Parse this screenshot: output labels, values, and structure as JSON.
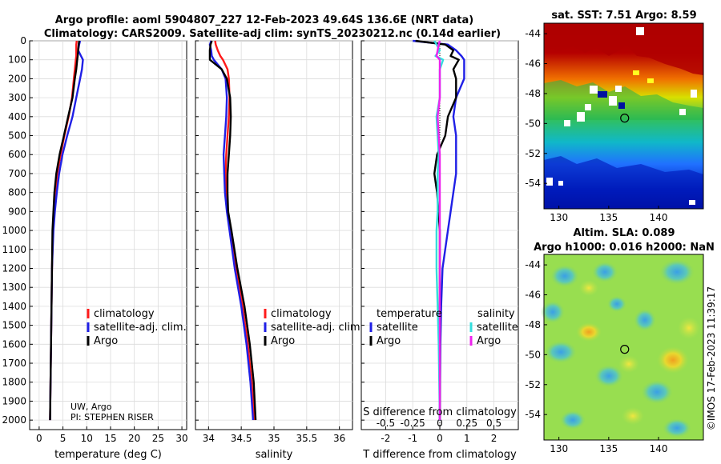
{
  "header": {
    "title_line1": "Argo profile: aoml 5904807_227 12-Feb-2023 49.64S 136.6E (NRT data)",
    "title_line2": "Climatology: CARS2009. Satellite-adj clim: synTS_20230212.nc (0.14d earlier)"
  },
  "pressure_ticks": [
    "0",
    "100",
    "200",
    "300",
    "400",
    "500",
    "600",
    "700",
    "800",
    "900",
    "1000",
    "1100",
    "1200",
    "1300",
    "1400",
    "1500",
    "1600",
    "1700",
    "1800",
    "1900",
    "2000"
  ],
  "legend": {
    "climatology": "climatology",
    "satellite": "satellite-adj. clim.",
    "argo": "Argo"
  },
  "diff_legend": {
    "temperature": "temperature",
    "salinity": "salinity",
    "satellite": "satellite",
    "argo": "Argo"
  },
  "credit": {
    "line1": "UW, Argo",
    "line2": "PI: STEPHEN RISER"
  },
  "colors": {
    "climatology": "#ff1a1a",
    "satellite": "#1f1fe6",
    "argo": "#000000",
    "t_sat": "#1f1fe6",
    "t_argo": "#000000",
    "s_sat": "#33dddd",
    "s_argo": "#ee22ee"
  },
  "chart_data": [
    {
      "type": "line",
      "title": "",
      "xlabel": "temperature (deg C)",
      "ylabel": "",
      "xlim": [
        -2,
        31
      ],
      "ylim": [
        2050,
        0
      ],
      "xticks": [
        0,
        5,
        10,
        15,
        20,
        25,
        30
      ],
      "xtick_labels": [
        "0",
        "5",
        "10",
        "15",
        "20",
        "25",
        "30"
      ],
      "y": [
        0,
        20,
        50,
        80,
        100,
        150,
        200,
        300,
        400,
        500,
        600,
        700,
        800,
        900,
        1000,
        1200,
        1400,
        1600,
        1800,
        2000
      ],
      "series": [
        {
          "name": "climatology",
          "values": [
            7.9,
            7.8,
            7.8,
            7.8,
            7.7,
            7.5,
            7.3,
            6.9,
            6.2,
            5.3,
            4.5,
            3.8,
            3.4,
            3.1,
            2.9,
            2.7,
            2.6,
            2.5,
            2.4,
            2.3
          ]
        },
        {
          "name": "satellite-adj. clim.",
          "values": [
            8.6,
            8.4,
            8.2,
            8.8,
            9.2,
            9.0,
            8.6,
            7.8,
            7.0,
            5.9,
            4.9,
            4.2,
            3.7,
            3.3,
            3.0,
            2.7,
            2.6,
            2.5,
            2.4,
            2.3
          ]
        },
        {
          "name": "Argo",
          "values": [
            8.4,
            8.3,
            8.2,
            8.1,
            8.0,
            7.8,
            7.5,
            7.0,
            6.1,
            5.2,
            4.3,
            3.6,
            3.2,
            3.0,
            2.8,
            2.7,
            2.6,
            2.5,
            2.4,
            2.3
          ]
        }
      ]
    },
    {
      "type": "line",
      "title": "",
      "xlabel": "salinity",
      "ylabel": "",
      "xlim": [
        33.8,
        36.2
      ],
      "ylim": [
        2050,
        0
      ],
      "xticks": [
        34,
        34.5,
        35,
        35.5,
        36
      ],
      "xtick_labels": [
        "34",
        "34.5",
        "35",
        "35.5",
        "36"
      ],
      "y": [
        0,
        20,
        50,
        80,
        100,
        150,
        200,
        300,
        400,
        500,
        600,
        700,
        800,
        900,
        1000,
        1200,
        1400,
        1600,
        1800,
        2000
      ],
      "series": [
        {
          "name": "climatology",
          "values": [
            34.1,
            34.11,
            34.14,
            34.18,
            34.22,
            34.29,
            34.31,
            34.32,
            34.31,
            34.29,
            34.27,
            34.26,
            34.27,
            34.29,
            34.33,
            34.42,
            34.52,
            34.6,
            34.66,
            34.7
          ]
        },
        {
          "name": "satellite-adj. clim.",
          "values": [
            34.04,
            34.02,
            34.04,
            34.05,
            34.08,
            34.2,
            34.26,
            34.28,
            34.27,
            34.25,
            34.23,
            34.24,
            34.25,
            34.28,
            34.32,
            34.4,
            34.5,
            34.58,
            34.64,
            34.68
          ]
        },
        {
          "name": "Argo",
          "values": [
            34.05,
            34.03,
            34.02,
            34.02,
            34.02,
            34.2,
            34.28,
            34.33,
            34.34,
            34.33,
            34.31,
            34.29,
            34.29,
            34.3,
            34.35,
            34.44,
            34.55,
            34.63,
            34.69,
            34.72
          ]
        }
      ]
    },
    {
      "type": "line",
      "title": "",
      "xlabel": "T difference from climatology",
      "ylabel": "",
      "xlim": [
        -2.9,
        2.9
      ],
      "ylim": [
        2050,
        0
      ],
      "xticks": [
        -2,
        -1,
        0,
        1,
        2
      ],
      "xtick_labels": [
        "-2",
        "-1",
        "0",
        "1",
        "2"
      ],
      "top_axis": {
        "label": "S difference from climatology",
        "ticks": [
          -0.5,
          -0.25,
          0,
          0.25,
          0.5
        ],
        "tick_labels": [
          "-0.5",
          "-0.25",
          "0",
          "0.25",
          "0.5"
        ],
        "xlim": [
          -0.725,
          0.725
        ]
      },
      "y": [
        0,
        20,
        50,
        80,
        100,
        150,
        200,
        300,
        400,
        500,
        600,
        700,
        800,
        900,
        1000,
        1200,
        1400,
        1600,
        1800,
        2000
      ],
      "series": [
        {
          "name": "temperature satellite",
          "values": [
            -1.0,
            0.3,
            0.6,
            0.8,
            0.9,
            0.9,
            0.9,
            0.6,
            0.5,
            0.6,
            0.6,
            0.6,
            0.5,
            0.4,
            0.3,
            0.1,
            0.05,
            0.02,
            0.01,
            0
          ]
        },
        {
          "name": "temperature Argo",
          "values": [
            -0.9,
            0.2,
            0.5,
            0.4,
            0.7,
            0.5,
            0.6,
            0.6,
            0.3,
            0.2,
            -0.1,
            -0.2,
            -0.1,
            -0.05,
            0,
            0,
            0,
            0,
            0,
            0
          ]
        },
        {
          "name": "salinity satellite",
          "values": [
            -0.05,
            -0.03,
            0,
            -0.04,
            0.03,
            0,
            0,
            0,
            -0.03,
            -0.02,
            -0.01,
            -0.02,
            -0.02,
            -0.02,
            -0.03,
            -0.03,
            -0.02,
            -0.01,
            -0.005,
            0
          ]
        },
        {
          "name": "salinity Argo",
          "values": [
            0,
            -0.01,
            -0.02,
            -0.03,
            0,
            0,
            0,
            0,
            -0.02,
            -0.01,
            0,
            0,
            0,
            0,
            0,
            0,
            0,
            0,
            0,
            0
          ]
        }
      ]
    },
    {
      "type": "heatmap",
      "title": "sat. SST: 7.51 Argo: 8.59",
      "xlim": [
        128.5,
        144.5
      ],
      "ylim": [
        -55.7,
        -43.3
      ],
      "xticks": [
        130,
        135,
        140
      ],
      "xtick_labels": [
        "130",
        "135",
        "140"
      ],
      "yticks": [
        -44,
        -46,
        -48,
        -50,
        -52,
        -54
      ],
      "ytick_labels": [
        "-44",
        "-46",
        "-48",
        "-50",
        "-52",
        "-54"
      ],
      "marker": {
        "lon": 136.6,
        "lat": -49.64
      }
    },
    {
      "type": "heatmap",
      "title": "Altim. SLA: 0.089",
      "subtitle": "Argo h1000: 0.016 h2000: NaN",
      "xlim": [
        128.5,
        144.5
      ],
      "ylim": [
        -55.7,
        -43.3
      ],
      "xticks": [
        130,
        135,
        140
      ],
      "xtick_labels": [
        "130",
        "135",
        "140"
      ],
      "yticks": [
        -44,
        -46,
        -48,
        -50,
        -52,
        -54
      ],
      "ytick_labels": [
        "-44",
        "-46",
        "-48",
        "-50",
        "-52",
        "-54"
      ],
      "marker": {
        "lon": 136.6,
        "lat": -49.64
      }
    }
  ],
  "watermark": "©IMOS 17-Feb-2023 11:39:17"
}
